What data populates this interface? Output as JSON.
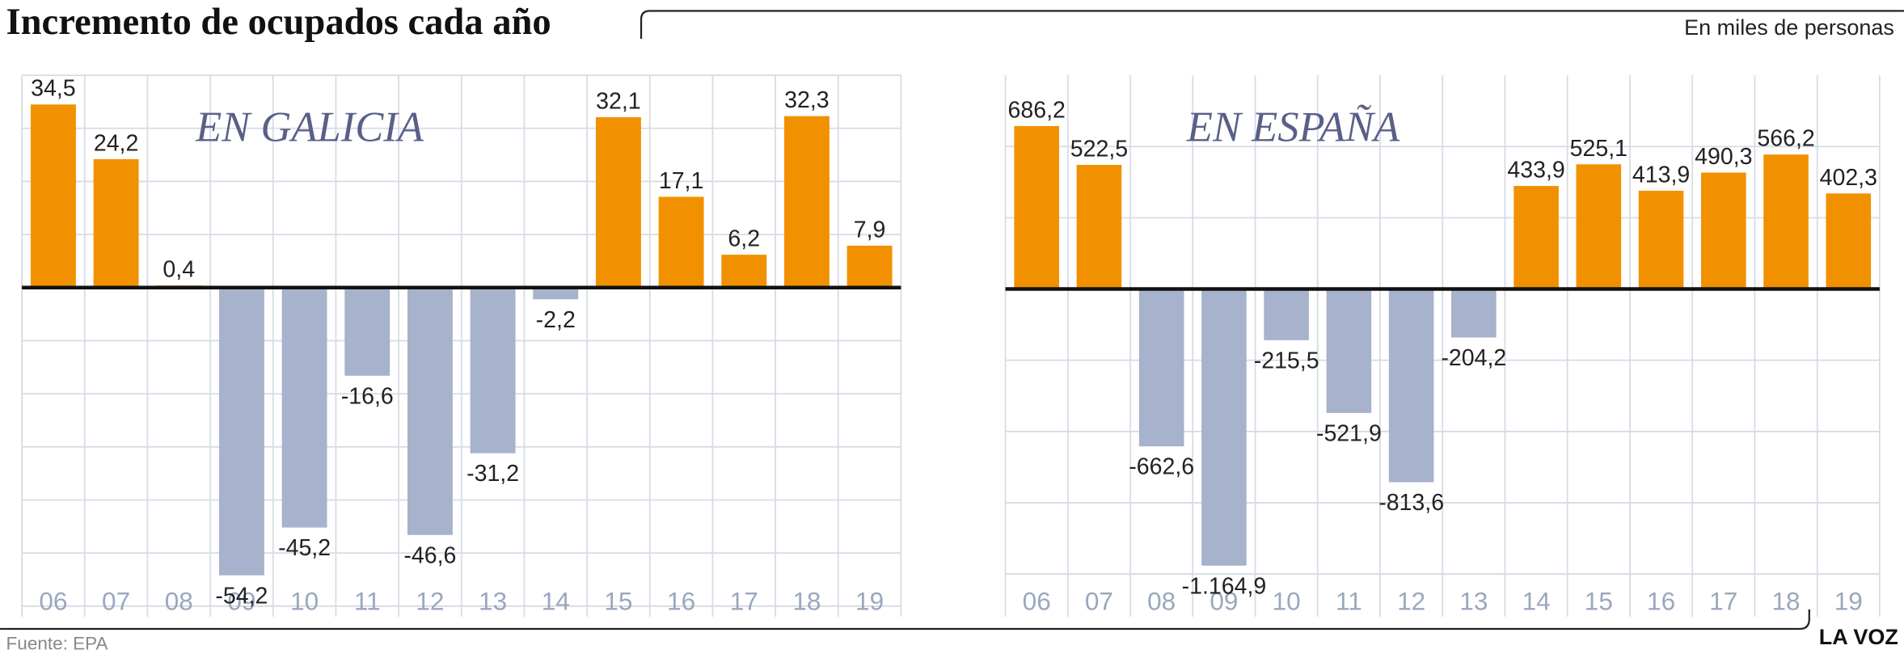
{
  "title": "Incremento de ocupados cada año",
  "unit_note": "En miles de personas",
  "source": "Fuente:  EPA",
  "brand": "LA VOZ",
  "chart_data": [
    {
      "type": "bar",
      "subtitle": "EN GALICIA",
      "categories": [
        "06",
        "07",
        "08",
        "09",
        "10",
        "11",
        "12",
        "13",
        "14",
        "15",
        "16",
        "17",
        "18",
        "19"
      ],
      "values": [
        34.5,
        24.2,
        0.4,
        -54.2,
        -45.2,
        -16.6,
        -46.6,
        -31.2,
        -2.2,
        32.1,
        17.1,
        6.2,
        32.3,
        7.9
      ],
      "value_labels": [
        "34,5",
        "24,2",
        "0,4",
        "-54,2",
        "-45,2",
        "-16,6",
        "-46,6",
        "-31,2",
        "-2,2",
        "32,1",
        "17,1",
        "6,2",
        "32,3",
        "7,9"
      ],
      "color": "#f29100",
      "negative_color": "#a7b2cc",
      "ylim": [
        -62,
        40
      ],
      "yticks": [
        -60,
        -50,
        -40,
        -30,
        -20,
        -10,
        0,
        10,
        20,
        30,
        40
      ],
      "grid": true
    },
    {
      "type": "bar",
      "subtitle": "EN ESPAÑA",
      "categories": [
        "06",
        "07",
        "08",
        "09",
        "10",
        "11",
        "12",
        "13",
        "14",
        "15",
        "16",
        "17",
        "18",
        "19"
      ],
      "values": [
        686.2,
        522.5,
        -662.6,
        -1164.9,
        -215.5,
        -521.9,
        -813.6,
        -204.2,
        433.9,
        525.1,
        413.9,
        490.3,
        566.2,
        402.3
      ],
      "value_labels": [
        "686,2",
        "522,5",
        "-662,6",
        "-1.164,9",
        "-215,5",
        "-521,9",
        "-813,6",
        "-204,2",
        "433,9",
        "525,1",
        "413,9",
        "490,3",
        "566,2",
        "402,3"
      ],
      "color": "#f29100",
      "negative_color": "#a7b2cc",
      "ylim": [
        -1380,
        900
      ],
      "yticks": [
        -1200,
        -900,
        -600,
        -300,
        0,
        300,
        600
      ],
      "grid": true
    }
  ]
}
